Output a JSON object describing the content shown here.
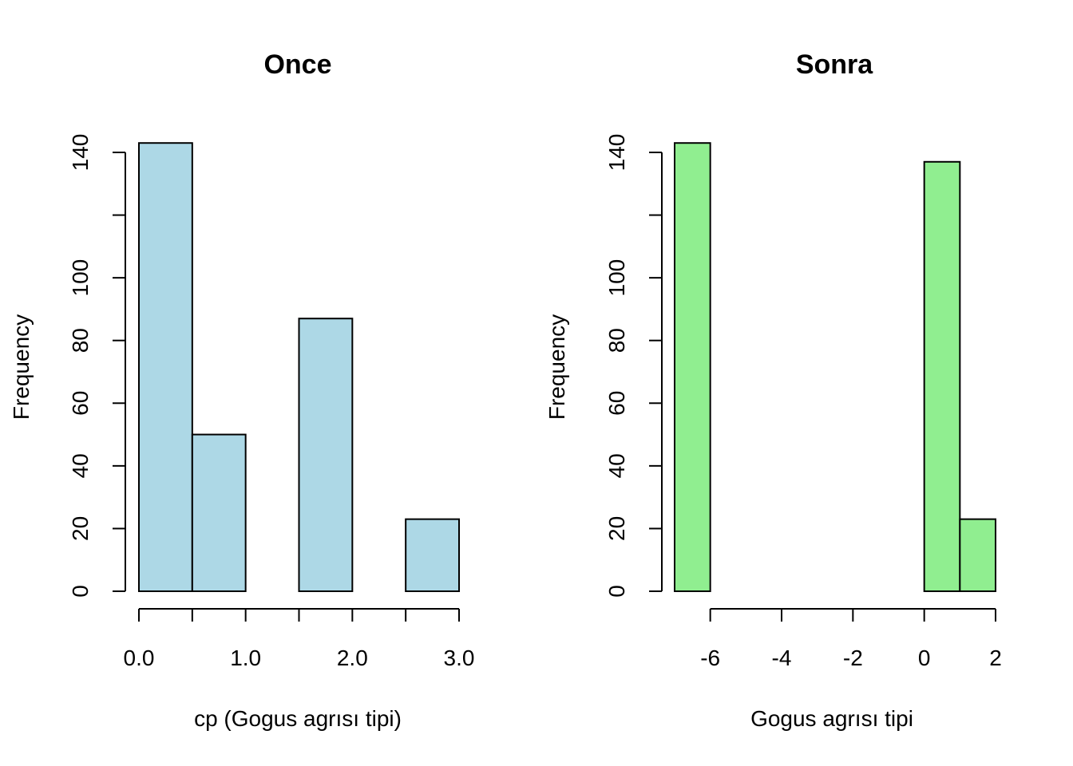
{
  "chart_data": [
    {
      "type": "bar",
      "title": "Once",
      "xlabel": "cp (Gogus agrısı tipi)",
      "ylabel": "Frequency",
      "bar_color": "#add8e6",
      "bins": [
        {
          "x0": 0.0,
          "x1": 0.5,
          "count": 143
        },
        {
          "x0": 0.5,
          "x1": 1.0,
          "count": 50
        },
        {
          "x0": 1.0,
          "x1": 1.5,
          "count": 0
        },
        {
          "x0": 1.5,
          "x1": 2.0,
          "count": 87
        },
        {
          "x0": 2.0,
          "x1": 2.5,
          "count": 0
        },
        {
          "x0": 2.5,
          "x1": 3.0,
          "count": 23
        }
      ],
      "xlim": [
        0.0,
        3.0
      ],
      "ylim": [
        0,
        143
      ],
      "xticks": [
        0.0,
        0.5,
        1.0,
        1.5,
        2.0,
        2.5,
        3.0
      ],
      "xtick_labels": [
        "0.0",
        "",
        "1.0",
        "",
        "2.0",
        "",
        "3.0"
      ],
      "yticks": [
        0,
        20,
        40,
        60,
        80,
        100,
        120,
        140
      ],
      "ytick_labels": [
        "0",
        "20",
        "40",
        "60",
        "80",
        "100",
        "",
        "140"
      ]
    },
    {
      "type": "bar",
      "title": "Sonra",
      "xlabel": "Gogus agrısı tipi",
      "ylabel": "Frequency",
      "bar_color": "#90ee90",
      "bins": [
        {
          "x0": -7,
          "x1": -6,
          "count": 143
        },
        {
          "x0": -6,
          "x1": -5,
          "count": 0
        },
        {
          "x0": -5,
          "x1": -4,
          "count": 0
        },
        {
          "x0": -4,
          "x1": -3,
          "count": 0
        },
        {
          "x0": -3,
          "x1": -2,
          "count": 0
        },
        {
          "x0": -2,
          "x1": -1,
          "count": 0
        },
        {
          "x0": -1,
          "x1": 0,
          "count": 0
        },
        {
          "x0": 0,
          "x1": 1,
          "count": 137
        },
        {
          "x0": 1,
          "x1": 2,
          "count": 23
        }
      ],
      "xlim": [
        -7,
        2
      ],
      "ylim": [
        0,
        143
      ],
      "xticks": [
        -6,
        -4,
        -2,
        0,
        2
      ],
      "xtick_labels": [
        "-6",
        "-4",
        "-2",
        "0",
        "2"
      ],
      "yticks": [
        0,
        20,
        40,
        60,
        80,
        100,
        120,
        140
      ],
      "ytick_labels": [
        "0",
        "20",
        "40",
        "60",
        "80",
        "100",
        "",
        "140"
      ]
    }
  ]
}
